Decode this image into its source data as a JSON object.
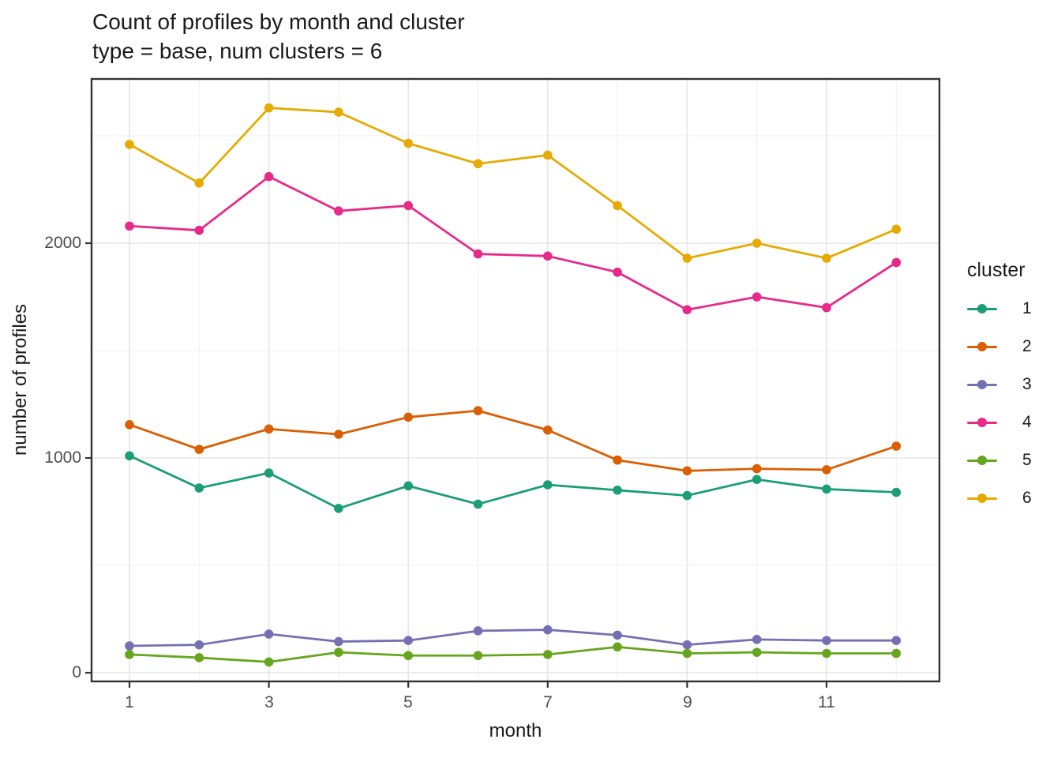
{
  "chart_data": {
    "type": "line",
    "title": "Count of profiles by month and cluster",
    "subtitle": "type = base, num clusters = 6",
    "xlabel": "month",
    "ylabel": "number of profiles",
    "x": [
      1,
      2,
      3,
      4,
      5,
      6,
      7,
      8,
      9,
      10,
      11,
      12
    ],
    "x_tick_labels": [
      "1",
      "3",
      "5",
      "7",
      "9",
      "11"
    ],
    "x_ticks": [
      1,
      3,
      5,
      7,
      9,
      11
    ],
    "y_tick_labels": [
      "0",
      "1000",
      "2000"
    ],
    "y_ticks": [
      0,
      1000,
      2000
    ],
    "y_minor_ticks": [
      500,
      1500,
      2500
    ],
    "x_minor_ticks": [
      2,
      4,
      6,
      8,
      10,
      12
    ],
    "xlim": [
      0.45,
      12.6
    ],
    "ylim": [
      -40,
      2765
    ],
    "grid": "major-and-minor",
    "legend_title": "cluster",
    "legend_position": "right",
    "panel_border_color": "#333333",
    "grid_major_color": "#e5e5e5",
    "grid_minor_color": "#efefef",
    "tick_label_color": "#4d4d4d",
    "series": [
      {
        "name": "1",
        "color": "#1B9E77",
        "values": [
          1010,
          860,
          930,
          765,
          870,
          785,
          875,
          850,
          825,
          900,
          855,
          840
        ]
      },
      {
        "name": "2",
        "color": "#D95F02",
        "values": [
          1155,
          1040,
          1135,
          1110,
          1190,
          1220,
          1130,
          990,
          940,
          950,
          945,
          1055
        ]
      },
      {
        "name": "3",
        "color": "#7570B3",
        "values": [
          125,
          130,
          180,
          145,
          150,
          195,
          200,
          175,
          130,
          155,
          150,
          150
        ]
      },
      {
        "name": "4",
        "color": "#E7298A",
        "values": [
          2080,
          2060,
          2310,
          2150,
          2175,
          1950,
          1940,
          1865,
          1690,
          1750,
          1700,
          1910
        ]
      },
      {
        "name": "5",
        "color": "#66A61E",
        "values": [
          85,
          70,
          50,
          95,
          80,
          80,
          85,
          120,
          90,
          95,
          90,
          90
        ]
      },
      {
        "name": "6",
        "color": "#E6AB02",
        "values": [
          2460,
          2280,
          2630,
          2610,
          2465,
          2370,
          2410,
          2175,
          1930,
          2000,
          1930,
          2065
        ]
      }
    ]
  }
}
